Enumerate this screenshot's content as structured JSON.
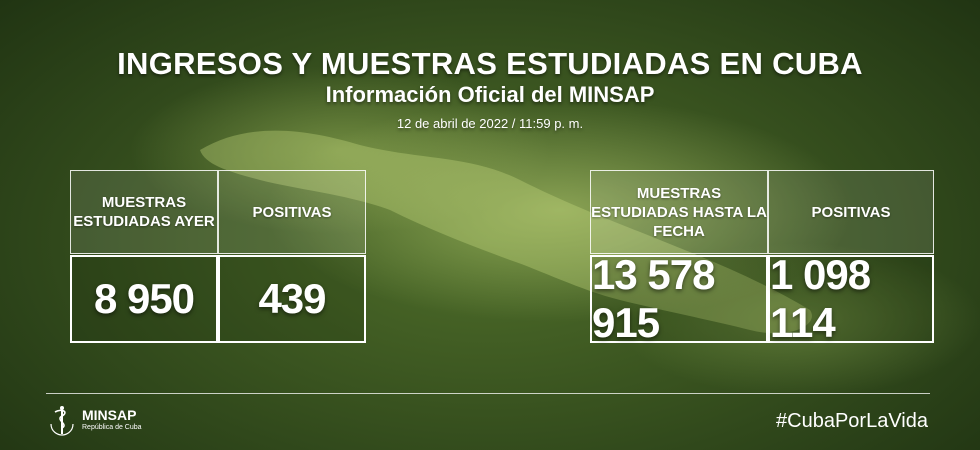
{
  "header": {
    "title": "INGRESOS Y MUESTRAS ESTUDIADAS EN CUBA",
    "subtitle": "Información Oficial del MINSAP",
    "date": "12 de abril de 2022 / 11:59 p. m."
  },
  "daily": {
    "samples_label": "MUESTRAS ESTUDIADAS AYER",
    "positives_label": "POSITIVAS",
    "samples_value": "8 950",
    "positives_value": "439"
  },
  "cumulative": {
    "samples_label": "MUESTRAS ESTUDIADAS HASTA LA FECHA",
    "positives_label": "POSITIVAS",
    "samples_value": "13 578 915",
    "positives_value": "1 098 114"
  },
  "footer": {
    "logo_name": "MINSAP",
    "logo_sub": "República de Cuba",
    "hashtag": "#CubaPorLaVida"
  },
  "colors": {
    "background": "#3a5620",
    "text": "#ffffff"
  },
  "icons": [
    "cuba-map-silhouette",
    "caduceus-icon"
  ]
}
